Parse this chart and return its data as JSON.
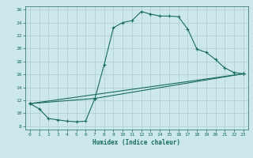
{
  "title": "",
  "xlabel": "Humidex (Indice chaleur)",
  "bg_color": "#cce8ec",
  "line_color": "#1a6b5e",
  "grid_color": "#aacccc",
  "xlim": [
    -0.5,
    23.5
  ],
  "ylim": [
    7.5,
    26.5
  ],
  "yticks": [
    8,
    10,
    12,
    14,
    16,
    18,
    20,
    22,
    24,
    26
  ],
  "xticks": [
    0,
    1,
    2,
    3,
    4,
    5,
    6,
    7,
    8,
    9,
    10,
    11,
    12,
    13,
    14,
    15,
    16,
    17,
    18,
    19,
    20,
    21,
    22,
    23
  ],
  "line1_x": [
    0,
    1,
    2,
    3,
    4,
    5,
    6,
    7,
    8,
    9,
    10,
    11,
    12,
    13,
    14,
    15,
    16,
    17,
    18,
    19,
    20,
    21,
    22,
    23
  ],
  "line1_y": [
    11.5,
    10.7,
    9.2,
    9.0,
    8.8,
    8.7,
    8.8,
    12.3,
    17.5,
    23.2,
    24.0,
    24.3,
    25.7,
    25.3,
    25.0,
    25.0,
    24.9,
    23.0,
    19.9,
    19.4,
    18.3,
    17.0,
    16.3,
    16.1
  ],
  "line2_x": [
    0,
    7,
    23
  ],
  "line2_y": [
    11.5,
    12.3,
    16.1
  ],
  "line3_x": [
    0,
    23
  ],
  "line3_y": [
    11.5,
    16.1
  ]
}
